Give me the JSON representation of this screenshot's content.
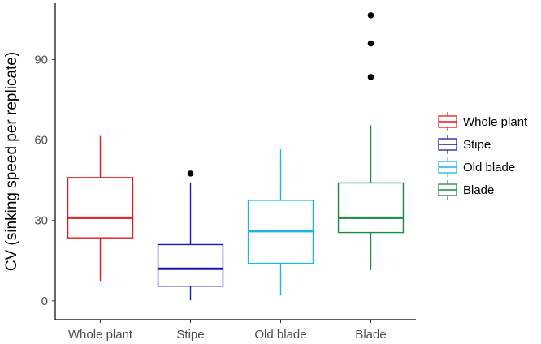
{
  "chart_data": {
    "type": "boxplot",
    "title": "",
    "xlabel": "",
    "ylabel": "CV (sinking speed per replicate)",
    "ylim": [
      -7,
      111
    ],
    "yticks": [
      0,
      30,
      60,
      90
    ],
    "grid": false,
    "legend_position": "right",
    "categories": [
      "Whole plant",
      "Stipe",
      "Old blade",
      "Blade"
    ],
    "series": [
      {
        "name": "Whole plant",
        "color": "#e41a1c",
        "min": 7.5,
        "q1": 23.5,
        "median": 31,
        "q3": 46,
        "max": 61.5,
        "outliers": []
      },
      {
        "name": "Stipe",
        "color": "#1a1ab5",
        "min": 0.2,
        "q1": 5.5,
        "median": 12,
        "q3": 21,
        "max": 44,
        "outliers": [
          47.5
        ]
      },
      {
        "name": "Old blade",
        "color": "#1ab5e8",
        "min": 2,
        "q1": 14,
        "median": 26,
        "q3": 37.5,
        "max": 56.5,
        "outliers": []
      },
      {
        "name": "Blade",
        "color": "#1a8a4a",
        "min": 11.5,
        "q1": 25.5,
        "median": 31,
        "q3": 44,
        "max": 65.5,
        "outliers": [
          83.5,
          96,
          106.5
        ]
      }
    ]
  }
}
